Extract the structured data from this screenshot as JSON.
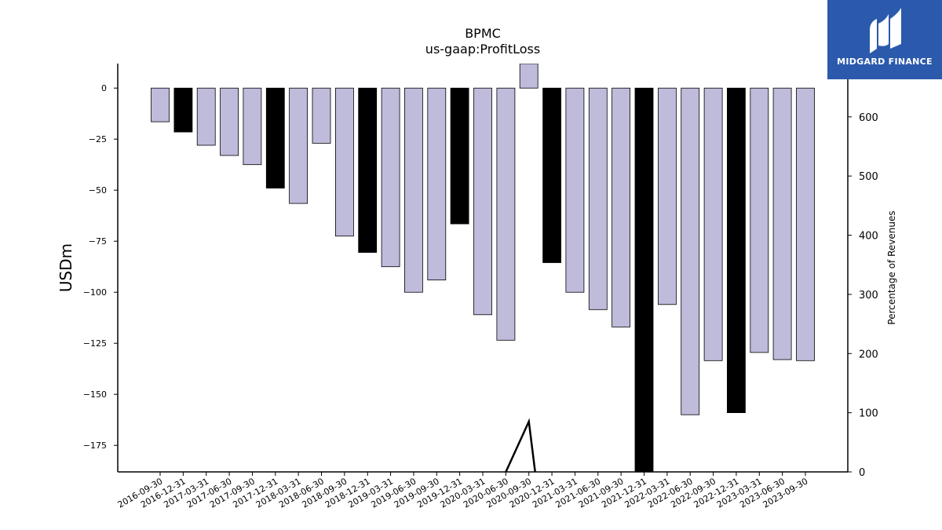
{
  "chart_data": {
    "type": "bar",
    "title": "BPMC",
    "subtitle": "us-gaap:ProfitLoss",
    "ylabel": "USDm",
    "y2label": "Percentage of Revenues",
    "ylim": [
      -188,
      12
    ],
    "y2lim": [
      0,
      690
    ],
    "yticks": [
      0,
      -25,
      -50,
      -75,
      -100,
      -125,
      -150,
      -175
    ],
    "y2ticks": [
      0,
      100,
      200,
      300,
      400,
      500,
      600
    ],
    "categories": [
      "2016-09-30",
      "2016-12-31",
      "2017-03-31",
      "2017-06-30",
      "2017-09-30",
      "2017-12-31",
      "2018-03-31",
      "2018-06-30",
      "2018-09-30",
      "2018-12-31",
      "2019-03-31",
      "2019-06-30",
      "2019-09-30",
      "2019-12-31",
      "2020-03-31",
      "2020-06-30",
      "2020-09-30",
      "2020-12-31",
      "2021-03-31",
      "2021-06-30",
      "2021-09-30",
      "2021-12-31",
      "2022-03-31",
      "2022-06-30",
      "2022-09-30",
      "2022-12-31",
      "2023-03-31",
      "2023-06-30",
      "2023-09-30"
    ],
    "values": [
      -16.5,
      -21.5,
      -28,
      -33,
      -37.5,
      -49,
      -56.5,
      -27,
      -72.5,
      -80.5,
      -87.5,
      -100,
      -94,
      -66.5,
      -111,
      -123.5,
      12,
      -85.5,
      -100,
      -108.5,
      -117,
      -190,
      -106,
      -160,
      -133.5,
      -159,
      -129.5,
      -133,
      -133.5
    ],
    "annual": [
      false,
      true,
      false,
      false,
      false,
      true,
      false,
      false,
      false,
      true,
      false,
      false,
      false,
      true,
      false,
      false,
      false,
      true,
      false,
      false,
      false,
      true,
      false,
      false,
      false,
      true,
      false,
      false,
      false
    ],
    "percent_of_revenues": {
      "x": [
        "2020-06-30",
        "2020-09-30",
        "2020-09-30"
      ],
      "values": [
        0,
        85,
        0
      ]
    },
    "colors": {
      "quarterly": "#bfbbdb",
      "annual": "#000000",
      "line": "#000000"
    }
  },
  "logo": {
    "text": "MIDGARD FINANCE",
    "bg": "#2b5aad"
  }
}
